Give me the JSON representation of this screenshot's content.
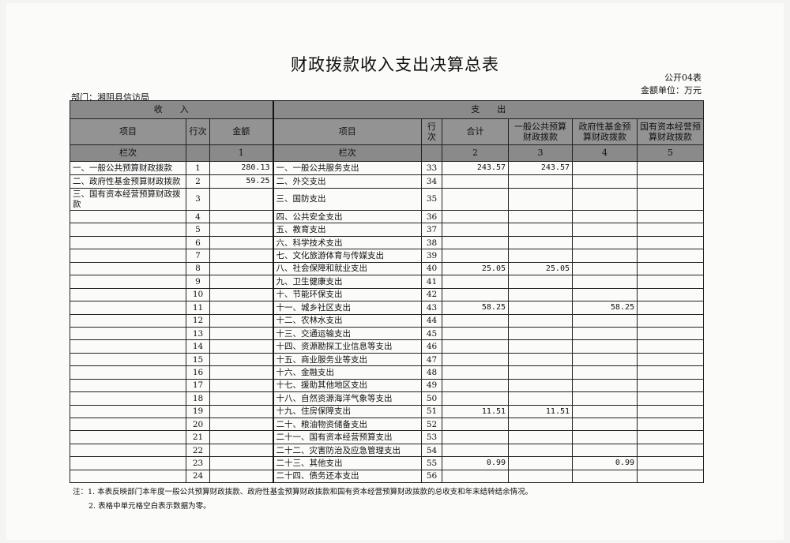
{
  "title": "财政拨款收入支出决算总表",
  "form_code": "公开04表",
  "unit": "金额单位：万元",
  "department": "部门：湘阴县信访局",
  "header": {
    "income": "收　　入",
    "expense": "支　　出",
    "item": "项目",
    "row_no": "行次",
    "amount": "金额",
    "total": "合计",
    "general": "一般公共预算财政拨款",
    "gov_fund": "政府性基金预算财政拨款",
    "state_capital": "国有资本经营预算财政拨款",
    "col_label": "栏次",
    "col1": "1",
    "col2": "2",
    "col3": "3",
    "col4": "4",
    "col5": "5"
  },
  "rows": [
    {
      "in_item": "一、一般公共预算财政拨款",
      "in_no": "1",
      "in_amt": "280.13",
      "out_item": "一、一般公共服务支出",
      "out_no": "33",
      "total": "243.57",
      "general": "243.57",
      "gov_fund": "",
      "state_capital": ""
    },
    {
      "in_item": "二、政府性基金预算财政拨款",
      "in_no": "2",
      "in_amt": "59.25",
      "out_item": "二、外交支出",
      "out_no": "34",
      "total": "",
      "general": "",
      "gov_fund": "",
      "state_capital": ""
    },
    {
      "in_item": "三、国有资本经营预算财政拨款",
      "in_no": "3",
      "in_amt": "",
      "out_item": "三、国防支出",
      "out_no": "35",
      "total": "",
      "general": "",
      "gov_fund": "",
      "state_capital": ""
    },
    {
      "in_item": "",
      "in_no": "4",
      "in_amt": "",
      "out_item": "四、公共安全支出",
      "out_no": "36",
      "total": "",
      "general": "",
      "gov_fund": "",
      "state_capital": ""
    },
    {
      "in_item": "",
      "in_no": "5",
      "in_amt": "",
      "out_item": "五、教育支出",
      "out_no": "37",
      "total": "",
      "general": "",
      "gov_fund": "",
      "state_capital": ""
    },
    {
      "in_item": "",
      "in_no": "6",
      "in_amt": "",
      "out_item": "六、科学技术支出",
      "out_no": "38",
      "total": "",
      "general": "",
      "gov_fund": "",
      "state_capital": ""
    },
    {
      "in_item": "",
      "in_no": "7",
      "in_amt": "",
      "out_item": "七、文化旅游体育与传媒支出",
      "out_no": "39",
      "total": "",
      "general": "",
      "gov_fund": "",
      "state_capital": ""
    },
    {
      "in_item": "",
      "in_no": "8",
      "in_amt": "",
      "out_item": "八、社会保障和就业支出",
      "out_no": "40",
      "total": "25.05",
      "general": "25.05",
      "gov_fund": "",
      "state_capital": ""
    },
    {
      "in_item": "",
      "in_no": "9",
      "in_amt": "",
      "out_item": "九、卫生健康支出",
      "out_no": "41",
      "total": "",
      "general": "",
      "gov_fund": "",
      "state_capital": ""
    },
    {
      "in_item": "",
      "in_no": "10",
      "in_amt": "",
      "out_item": "十、节能环保支出",
      "out_no": "42",
      "total": "",
      "general": "",
      "gov_fund": "",
      "state_capital": ""
    },
    {
      "in_item": "",
      "in_no": "11",
      "in_amt": "",
      "out_item": "十一、城乡社区支出",
      "out_no": "43",
      "total": "58.25",
      "general": "",
      "gov_fund": "58.25",
      "state_capital": ""
    },
    {
      "in_item": "",
      "in_no": "12",
      "in_amt": "",
      "out_item": "十二、农林水支出",
      "out_no": "44",
      "total": "",
      "general": "",
      "gov_fund": "",
      "state_capital": ""
    },
    {
      "in_item": "",
      "in_no": "13",
      "in_amt": "",
      "out_item": "十三、交通运输支出",
      "out_no": "45",
      "total": "",
      "general": "",
      "gov_fund": "",
      "state_capital": ""
    },
    {
      "in_item": "",
      "in_no": "14",
      "in_amt": "",
      "out_item": "十四、资源勘探工业信息等支出",
      "out_no": "46",
      "total": "",
      "general": "",
      "gov_fund": "",
      "state_capital": ""
    },
    {
      "in_item": "",
      "in_no": "15",
      "in_amt": "",
      "out_item": "十五、商业服务业等支出",
      "out_no": "47",
      "total": "",
      "general": "",
      "gov_fund": "",
      "state_capital": ""
    },
    {
      "in_item": "",
      "in_no": "16",
      "in_amt": "",
      "out_item": "十六、金融支出",
      "out_no": "48",
      "total": "",
      "general": "",
      "gov_fund": "",
      "state_capital": ""
    },
    {
      "in_item": "",
      "in_no": "17",
      "in_amt": "",
      "out_item": "十七、援助其他地区支出",
      "out_no": "49",
      "total": "",
      "general": "",
      "gov_fund": "",
      "state_capital": ""
    },
    {
      "in_item": "",
      "in_no": "18",
      "in_amt": "",
      "out_item": "十八、自然资源海洋气象等支出",
      "out_no": "50",
      "total": "",
      "general": "",
      "gov_fund": "",
      "state_capital": ""
    },
    {
      "in_item": "",
      "in_no": "19",
      "in_amt": "",
      "out_item": "十九、住房保障支出",
      "out_no": "51",
      "total": "11.51",
      "general": "11.51",
      "gov_fund": "",
      "state_capital": ""
    },
    {
      "in_item": "",
      "in_no": "20",
      "in_amt": "",
      "out_item": "二十、粮油物资储备支出",
      "out_no": "52",
      "total": "",
      "general": "",
      "gov_fund": "",
      "state_capital": ""
    },
    {
      "in_item": "",
      "in_no": "21",
      "in_amt": "",
      "out_item": "二十一、国有资本经营预算支出",
      "out_no": "53",
      "total": "",
      "general": "",
      "gov_fund": "",
      "state_capital": ""
    },
    {
      "in_item": "",
      "in_no": "22",
      "in_amt": "",
      "out_item": "二十二、灾害防治及应急管理支出",
      "out_no": "54",
      "total": "",
      "general": "",
      "gov_fund": "",
      "state_capital": ""
    },
    {
      "in_item": "",
      "in_no": "23",
      "in_amt": "",
      "out_item": "二十三、其他支出",
      "out_no": "55",
      "total": "0.99",
      "general": "",
      "gov_fund": "0.99",
      "state_capital": ""
    },
    {
      "in_item": "",
      "in_no": "24",
      "in_amt": "",
      "out_item": "二十四、债务还本支出",
      "out_no": "56",
      "total": "",
      "general": "",
      "gov_fund": "",
      "state_capital": ""
    }
  ],
  "notes": [
    "注：1. 本表反映部门本年度一般公共预算财政拨款、政府性基金预算财政拨款和国有资本经营预算财政拨款的总收支和年末结转结余情况。",
    "2. 表格中单元格空白表示数据为零。"
  ]
}
